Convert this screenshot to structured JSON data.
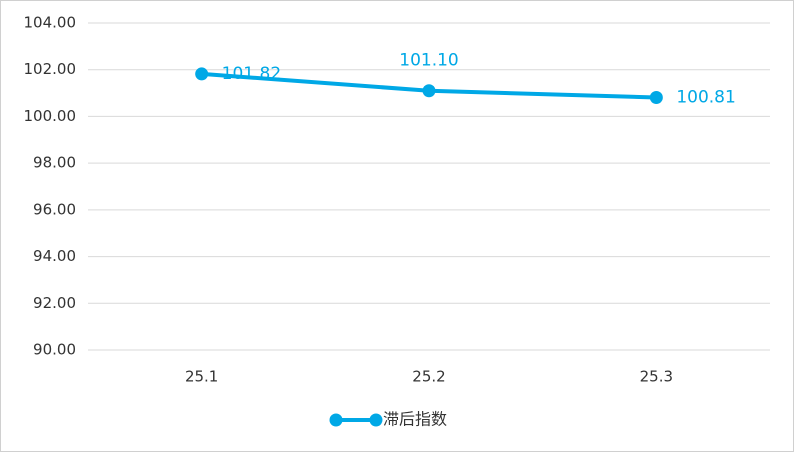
{
  "chart_data": {
    "type": "line",
    "categories": [
      "25.1",
      "25.2",
      "25.3"
    ],
    "series": [
      {
        "name": "滞后指数",
        "color": "#00a8e6",
        "values": [
          101.82,
          101.1,
          100.81
        ],
        "value_labels": [
          "101.82",
          "101.10",
          "100.81"
        ]
      }
    ],
    "ylim": [
      90,
      104
    ],
    "yticks": [
      {
        "value": 90,
        "label": "90.00"
      },
      {
        "value": 92,
        "label": "92.00"
      },
      {
        "value": 94,
        "label": "94.00"
      },
      {
        "value": 96,
        "label": "96.00"
      },
      {
        "value": 98,
        "label": "98.00"
      },
      {
        "value": 100,
        "label": "100.00"
      },
      {
        "value": 102,
        "label": "102.00"
      },
      {
        "value": 104,
        "label": "104.00"
      }
    ],
    "grid": true,
    "legend": "bottom"
  }
}
